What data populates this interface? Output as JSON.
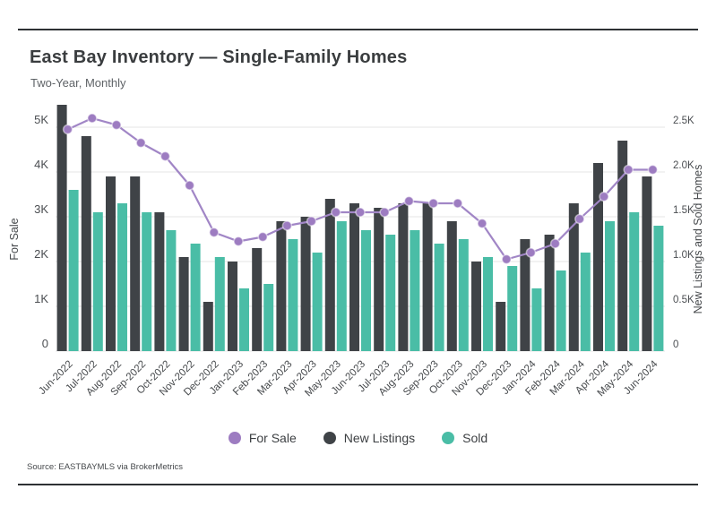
{
  "page": {
    "title": "East Bay Inventory — Single-Family Homes",
    "subtitle": "Two-Year, Monthly",
    "source": "Source: EASTBAYMLS via BrokerMetrics"
  },
  "chart_data": {
    "type": "combo",
    "title": "East Bay Inventory — Single-Family Homes",
    "subtitle": "Two-Year, Monthly",
    "grid": true,
    "legend_position": "bottom",
    "categories": [
      "Jun-2022",
      "Jul-2022",
      "Aug-2022",
      "Sep-2022",
      "Oct-2022",
      "Nov-2022",
      "Dec-2022",
      "Jan-2023",
      "Feb-2023",
      "Mar-2023",
      "Apr-2023",
      "May-2023",
      "Jun-2023",
      "Jul-2023",
      "Aug-2023",
      "Sep-2023",
      "Oct-2023",
      "Nov-2023",
      "Dec-2023",
      "Jan-2024",
      "Feb-2024",
      "Mar-2024",
      "Apr-2024",
      "May-2024",
      "Jun-2024"
    ],
    "series": [
      {
        "name": "For Sale",
        "type": "line",
        "axis": "left",
        "color": "#9d7cc1",
        "values": [
          4950,
          5200,
          5050,
          4650,
          4350,
          3700,
          2650,
          2450,
          2550,
          2800,
          2900,
          3100,
          3100,
          3100,
          3350,
          3300,
          3300,
          2850,
          2050,
          2200,
          2400,
          2950,
          3450,
          4050,
          4050
        ]
      },
      {
        "name": "New Listings",
        "type": "bar",
        "axis": "right",
        "color": "#3f4347",
        "values": [
          2750,
          2400,
          1950,
          1950,
          1550,
          1050,
          550,
          1000,
          1150,
          1450,
          1500,
          1700,
          1650,
          1600,
          1650,
          1650,
          1450,
          1000,
          550,
          1250,
          1300,
          1650,
          2100,
          2350,
          1950
        ]
      },
      {
        "name": "Sold",
        "type": "bar",
        "axis": "right",
        "color": "#4abda6",
        "values": [
          1800,
          1550,
          1650,
          1550,
          1350,
          1200,
          1050,
          700,
          750,
          1250,
          1100,
          1450,
          1350,
          1300,
          1350,
          1200,
          1250,
          1050,
          950,
          700,
          900,
          1100,
          1450,
          1550,
          1400
        ]
      }
    ],
    "left_axis": {
      "label": "For Sale",
      "max": 5000,
      "ticks": [
        "0",
        "1K",
        "2K",
        "3K",
        "4K",
        "5K"
      ]
    },
    "right_axis": {
      "label": "New Listings and Sold Homes",
      "max": 2500,
      "ticks": [
        "0",
        "0.5K",
        "1.0K",
        "1.5K",
        "2.0K",
        "2.5K"
      ]
    }
  }
}
